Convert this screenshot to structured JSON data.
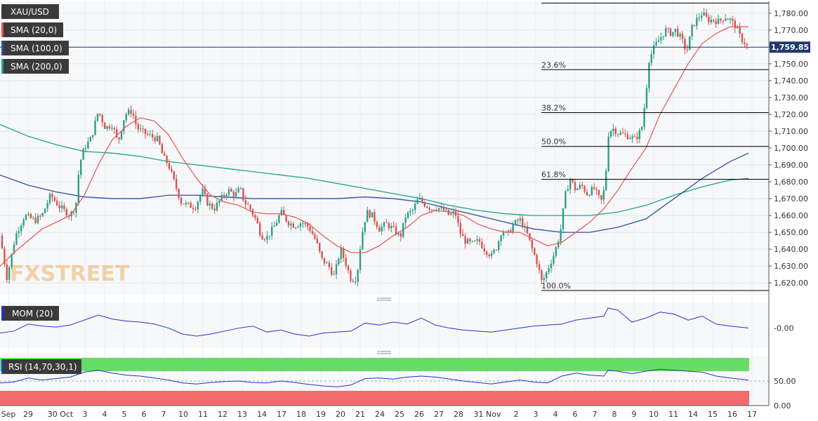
{
  "chart_data": {
    "type": "candlestick",
    "symbol": "XAU/USD",
    "colors": {
      "up": "#2e9e86",
      "down": "#d9534f",
      "sma20": "#e8524f",
      "sma100": "#2f4fa0",
      "sma200": "#1fa587",
      "fib": "#000000",
      "mom": "#2233cc",
      "rsi_upper": "#66dd66",
      "rsi_lower": "#f26b6b"
    },
    "indicators": [
      {
        "key": "xau",
        "label": "XAU/USD",
        "color": "#3a3a3a"
      },
      {
        "key": "sma20",
        "label": "SMA (20,0)",
        "color": "#e8524f"
      },
      {
        "key": "sma100",
        "label": "SMA (100,0)",
        "color": "#2f4fa0"
      },
      {
        "key": "sma200",
        "label": "SMA (200,0)",
        "color": "#1fa587"
      }
    ],
    "mom_label": "MOM (20)",
    "rsi_label": "RSI (14,70,30,1)",
    "last_price": "1,759.85",
    "watermark": "FXSTREET",
    "yaxis": {
      "min": 1613,
      "max": 1787,
      "ticks": [
        "1,620.00",
        "1,630.00",
        "1,640.00",
        "1,650.00",
        "1,660.00",
        "1,670.00",
        "1,680.00",
        "1,690.00",
        "1,700.00",
        "1,710.00",
        "1,720.00",
        "1,730.00",
        "1,740.00",
        "1,750.00",
        "1,760.00",
        "1,770.00",
        "1,780.00"
      ]
    },
    "mom_axis": {
      "ticks": [
        "-0.00"
      ]
    },
    "rsi_axis": {
      "ticks": [
        "50.00",
        "0.00"
      ]
    },
    "xaxis": {
      "labels": [
        "Sep",
        "29",
        "30 Oct",
        "3",
        "4",
        "5",
        "6",
        "7",
        "10",
        "11",
        "12",
        "13",
        "14",
        "17",
        "18",
        "19",
        "20",
        "21",
        "24",
        "25",
        "26",
        "27",
        "28",
        "31 Nov",
        "2",
        "3",
        "4",
        "6",
        "7",
        "8",
        "9",
        "10",
        "11",
        "14",
        "15",
        "16",
        "17"
      ]
    },
    "fibonacci": [
      {
        "label": "100.0%",
        "price": 1615.5
      },
      {
        "label": "61.8%",
        "price": 1681.5
      },
      {
        "label": "50.0%",
        "price": 1701.0
      },
      {
        "label": "38.2%",
        "price": 1721.0
      },
      {
        "label": "23.6%",
        "price": 1746.5
      },
      {
        "label": "",
        "price": 1786.0
      }
    ],
    "price_path": [
      [
        0,
        1648
      ],
      [
        10,
        1623
      ],
      [
        22,
        1648
      ],
      [
        35,
        1660
      ],
      [
        50,
        1657
      ],
      [
        60,
        1660
      ],
      [
        72,
        1672
      ],
      [
        85,
        1665
      ],
      [
        100,
        1660
      ],
      [
        108,
        1666
      ],
      [
        113,
        1690
      ],
      [
        120,
        1700
      ],
      [
        130,
        1706
      ],
      [
        140,
        1722
      ],
      [
        150,
        1712
      ],
      [
        160,
        1714
      ],
      [
        168,
        1703
      ],
      [
        178,
        1720
      ],
      [
        188,
        1722
      ],
      [
        195,
        1712
      ],
      [
        205,
        1709
      ],
      [
        215,
        1707
      ],
      [
        225,
        1705
      ],
      [
        232,
        1695
      ],
      [
        240,
        1690
      ],
      [
        248,
        1680
      ],
      [
        258,
        1668
      ],
      [
        268,
        1666
      ],
      [
        278,
        1665
      ],
      [
        288,
        1675
      ],
      [
        296,
        1667
      ],
      [
        305,
        1664
      ],
      [
        315,
        1670
      ],
      [
        325,
        1675
      ],
      [
        335,
        1672
      ],
      [
        342,
        1676
      ],
      [
        348,
        1668
      ],
      [
        355,
        1665
      ],
      [
        365,
        1657
      ],
      [
        372,
        1648
      ],
      [
        380,
        1647
      ],
      [
        390,
        1653
      ],
      [
        400,
        1662
      ],
      [
        410,
        1656
      ],
      [
        420,
        1654
      ],
      [
        430,
        1656
      ],
      [
        440,
        1653
      ],
      [
        450,
        1645
      ],
      [
        458,
        1634
      ],
      [
        468,
        1630
      ],
      [
        476,
        1624
      ],
      [
        485,
        1640
      ],
      [
        492,
        1632
      ],
      [
        500,
        1622
      ],
      [
        508,
        1623
      ],
      [
        515,
        1648
      ],
      [
        522,
        1662
      ],
      [
        530,
        1660
      ],
      [
        540,
        1652
      ],
      [
        550,
        1655
      ],
      [
        560,
        1652
      ],
      [
        570,
        1647
      ],
      [
        578,
        1660
      ],
      [
        588,
        1663
      ],
      [
        596,
        1670
      ],
      [
        604,
        1667
      ],
      [
        614,
        1664
      ],
      [
        622,
        1665
      ],
      [
        632,
        1663
      ],
      [
        640,
        1660
      ],
      [
        648,
        1662
      ],
      [
        655,
        1650
      ],
      [
        662,
        1645
      ],
      [
        672,
        1643
      ],
      [
        682,
        1645
      ],
      [
        690,
        1640
      ],
      [
        700,
        1636
      ],
      [
        708,
        1642
      ],
      [
        715,
        1652
      ],
      [
        722,
        1648
      ],
      [
        730,
        1654
      ],
      [
        740,
        1658
      ],
      [
        750,
        1650
      ],
      [
        758,
        1640
      ],
      [
        765,
        1632
      ],
      [
        772,
        1620
      ],
      [
        780,
        1628
      ],
      [
        790,
        1638
      ],
      [
        798,
        1650
      ],
      [
        805,
        1672
      ],
      [
        812,
        1682
      ],
      [
        820,
        1675
      ],
      [
        828,
        1678
      ],
      [
        836,
        1673
      ],
      [
        846,
        1676
      ],
      [
        856,
        1668
      ],
      [
        862,
        1678
      ],
      [
        866,
        1708
      ],
      [
        872,
        1712
      ],
      [
        880,
        1709
      ],
      [
        888,
        1708
      ],
      [
        896,
        1707
      ],
      [
        905,
        1705
      ],
      [
        914,
        1712
      ],
      [
        920,
        1732
      ],
      [
        924,
        1752
      ],
      [
        932,
        1760
      ],
      [
        940,
        1765
      ],
      [
        948,
        1770
      ],
      [
        956,
        1768
      ],
      [
        962,
        1770
      ],
      [
        970,
        1765
      ],
      [
        978,
        1757
      ],
      [
        986,
        1772
      ],
      [
        992,
        1776
      ],
      [
        1000,
        1780
      ],
      [
        1008,
        1776
      ],
      [
        1016,
        1776
      ],
      [
        1024,
        1775
      ],
      [
        1032,
        1778
      ],
      [
        1040,
        1776
      ],
      [
        1048,
        1772
      ],
      [
        1055,
        1765
      ],
      [
        1062,
        1762
      ],
      [
        1066,
        1758
      ]
    ],
    "sma20": [
      [
        0,
        1630
      ],
      [
        20,
        1638
      ],
      [
        40,
        1645
      ],
      [
        60,
        1652
      ],
      [
        80,
        1656
      ],
      [
        100,
        1660
      ],
      [
        120,
        1672
      ],
      [
        140,
        1690
      ],
      [
        160,
        1705
      ],
      [
        180,
        1713
      ],
      [
        200,
        1718
      ],
      [
        220,
        1716
      ],
      [
        240,
        1708
      ],
      [
        260,
        1694
      ],
      [
        280,
        1682
      ],
      [
        300,
        1672
      ],
      [
        320,
        1668
      ],
      [
        340,
        1666
      ],
      [
        360,
        1662
      ],
      [
        380,
        1661
      ],
      [
        400,
        1661
      ],
      [
        420,
        1659
      ],
      [
        440,
        1655
      ],
      [
        460,
        1648
      ],
      [
        480,
        1642
      ],
      [
        500,
        1638
      ],
      [
        520,
        1638
      ],
      [
        540,
        1642
      ],
      [
        560,
        1648
      ],
      [
        580,
        1653
      ],
      [
        600,
        1660
      ],
      [
        620,
        1663
      ],
      [
        640,
        1662
      ],
      [
        660,
        1660
      ],
      [
        680,
        1655
      ],
      [
        700,
        1652
      ],
      [
        720,
        1650
      ],
      [
        740,
        1650
      ],
      [
        760,
        1646
      ],
      [
        780,
        1642
      ],
      [
        800,
        1644
      ],
      [
        820,
        1650
      ],
      [
        840,
        1656
      ],
      [
        860,
        1664
      ],
      [
        880,
        1675
      ],
      [
        900,
        1688
      ],
      [
        920,
        1700
      ],
      [
        940,
        1720
      ],
      [
        960,
        1735
      ],
      [
        980,
        1750
      ],
      [
        1000,
        1762
      ],
      [
        1020,
        1768
      ],
      [
        1040,
        1772
      ],
      [
        1066,
        1772
      ]
    ],
    "sma100": [
      [
        0,
        1684
      ],
      [
        40,
        1678
      ],
      [
        80,
        1674
      ],
      [
        120,
        1671
      ],
      [
        160,
        1670
      ],
      [
        200,
        1670
      ],
      [
        240,
        1672
      ],
      [
        280,
        1672
      ],
      [
        320,
        1671
      ],
      [
        360,
        1670
      ],
      [
        400,
        1670
      ],
      [
        440,
        1670
      ],
      [
        480,
        1670
      ],
      [
        520,
        1671
      ],
      [
        560,
        1670
      ],
      [
        600,
        1668
      ],
      [
        640,
        1664
      ],
      [
        680,
        1660
      ],
      [
        720,
        1656
      ],
      [
        760,
        1652
      ],
      [
        800,
        1650
      ],
      [
        840,
        1650
      ],
      [
        880,
        1653
      ],
      [
        920,
        1658
      ],
      [
        960,
        1670
      ],
      [
        1000,
        1682
      ],
      [
        1040,
        1692
      ],
      [
        1066,
        1697
      ]
    ],
    "sma200": [
      [
        0,
        1714
      ],
      [
        40,
        1707
      ],
      [
        80,
        1702
      ],
      [
        120,
        1698
      ],
      [
        160,
        1697
      ],
      [
        200,
        1695
      ],
      [
        240,
        1692
      ],
      [
        280,
        1690
      ],
      [
        320,
        1688
      ],
      [
        360,
        1686
      ],
      [
        400,
        1684
      ],
      [
        440,
        1682
      ],
      [
        480,
        1679
      ],
      [
        520,
        1676
      ],
      [
        560,
        1673
      ],
      [
        600,
        1670
      ],
      [
        640,
        1666
      ],
      [
        680,
        1663
      ],
      [
        720,
        1661
      ],
      [
        760,
        1660
      ],
      [
        800,
        1660
      ],
      [
        840,
        1660
      ],
      [
        880,
        1662
      ],
      [
        920,
        1666
      ],
      [
        960,
        1672
      ],
      [
        1000,
        1677
      ],
      [
        1040,
        1681
      ],
      [
        1066,
        1682
      ]
    ],
    "mom": [
      [
        0,
        -0.5
      ],
      [
        20,
        -0.3
      ],
      [
        40,
        0.4
      ],
      [
        60,
        0.2
      ],
      [
        80,
        0.1
      ],
      [
        100,
        0.3
      ],
      [
        120,
        0.8
      ],
      [
        140,
        1.3
      ],
      [
        160,
        0.9
      ],
      [
        180,
        0.7
      ],
      [
        200,
        0.6
      ],
      [
        220,
        0.4
      ],
      [
        240,
        0.0
      ],
      [
        260,
        -0.6
      ],
      [
        280,
        -0.8
      ],
      [
        300,
        -0.6
      ],
      [
        320,
        -0.3
      ],
      [
        340,
        0.0
      ],
      [
        360,
        0.2
      ],
      [
        380,
        -0.4
      ],
      [
        400,
        -0.2
      ],
      [
        420,
        -0.6
      ],
      [
        440,
        -0.8
      ],
      [
        460,
        -0.5
      ],
      [
        480,
        -0.4
      ],
      [
        500,
        -0.3
      ],
      [
        520,
        0.5
      ],
      [
        540,
        0.3
      ],
      [
        560,
        0.6
      ],
      [
        580,
        0.4
      ],
      [
        600,
        1.0
      ],
      [
        620,
        0.3
      ],
      [
        640,
        0.0
      ],
      [
        660,
        -0.2
      ],
      [
        680,
        -0.3
      ],
      [
        700,
        -0.4
      ],
      [
        720,
        -0.2
      ],
      [
        740,
        0.0
      ],
      [
        760,
        0.2
      ],
      [
        780,
        0.3
      ],
      [
        800,
        0.4
      ],
      [
        820,
        0.8
      ],
      [
        840,
        1.0
      ],
      [
        860,
        1.2
      ],
      [
        866,
        2.0
      ],
      [
        880,
        1.8
      ],
      [
        900,
        0.6
      ],
      [
        920,
        1.0
      ],
      [
        940,
        1.6
      ],
      [
        960,
        1.4
      ],
      [
        980,
        0.8
      ],
      [
        1000,
        1.2
      ],
      [
        1020,
        0.4
      ],
      [
        1040,
        0.2
      ],
      [
        1066,
        0.0
      ]
    ],
    "rsi": [
      [
        0,
        46
      ],
      [
        20,
        48
      ],
      [
        40,
        56
      ],
      [
        60,
        52
      ],
      [
        80,
        55
      ],
      [
        100,
        58
      ],
      [
        120,
        68
      ],
      [
        140,
        72
      ],
      [
        160,
        66
      ],
      [
        180,
        62
      ],
      [
        200,
        60
      ],
      [
        220,
        56
      ],
      [
        240,
        52
      ],
      [
        260,
        46
      ],
      [
        280,
        44
      ],
      [
        300,
        47
      ],
      [
        320,
        49
      ],
      [
        340,
        50
      ],
      [
        360,
        47
      ],
      [
        380,
        46
      ],
      [
        400,
        50
      ],
      [
        420,
        47
      ],
      [
        440,
        43
      ],
      [
        460,
        40
      ],
      [
        480,
        38
      ],
      [
        500,
        42
      ],
      [
        520,
        55
      ],
      [
        540,
        56
      ],
      [
        560,
        54
      ],
      [
        580,
        58
      ],
      [
        600,
        60
      ],
      [
        620,
        58
      ],
      [
        640,
        54
      ],
      [
        660,
        50
      ],
      [
        680,
        47
      ],
      [
        700,
        44
      ],
      [
        720,
        48
      ],
      [
        740,
        52
      ],
      [
        760,
        48
      ],
      [
        780,
        46
      ],
      [
        800,
        60
      ],
      [
        820,
        66
      ],
      [
        840,
        62
      ],
      [
        860,
        60
      ],
      [
        866,
        72
      ],
      [
        880,
        70
      ],
      [
        900,
        65
      ],
      [
        920,
        70
      ],
      [
        940,
        74
      ],
      [
        960,
        72
      ],
      [
        980,
        70
      ],
      [
        1000,
        68
      ],
      [
        1020,
        60
      ],
      [
        1040,
        56
      ],
      [
        1066,
        52
      ]
    ]
  }
}
